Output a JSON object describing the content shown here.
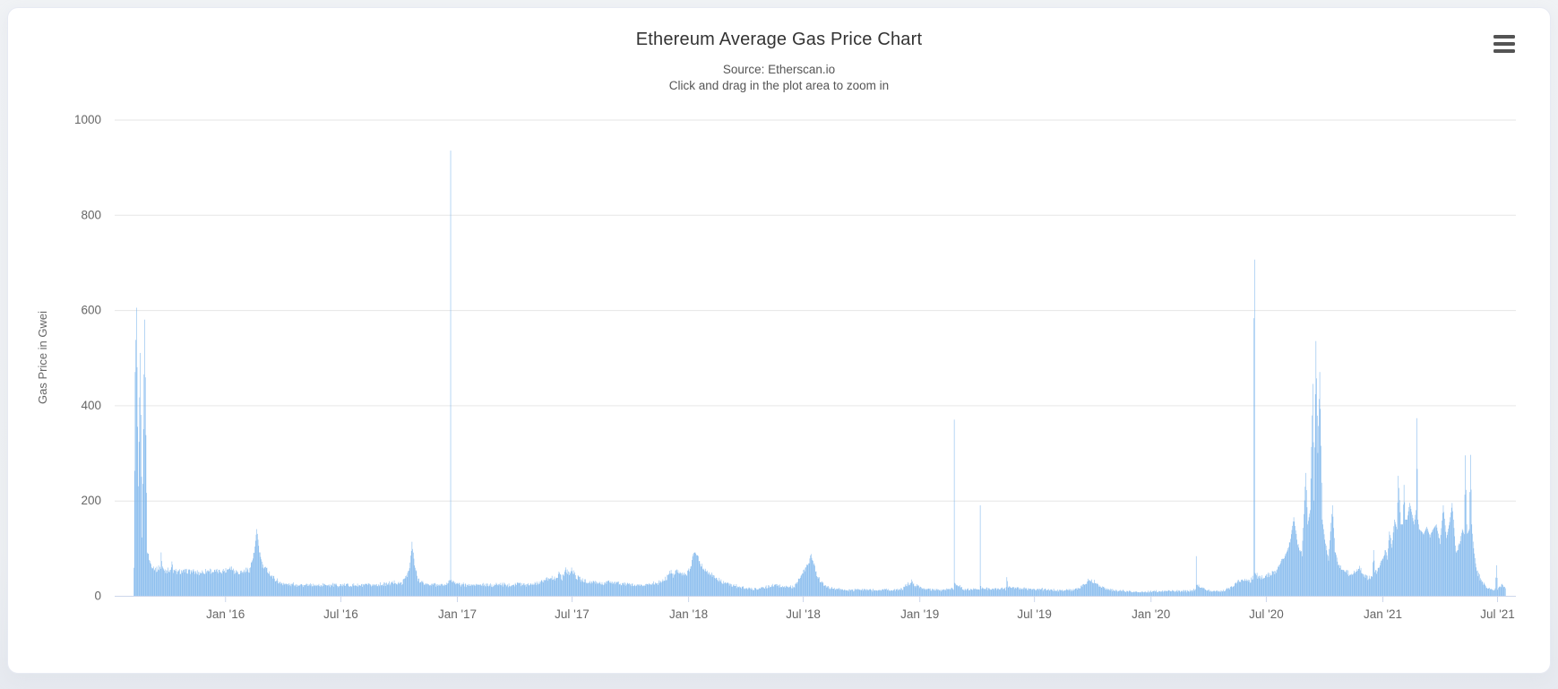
{
  "colors": {
    "series": "#7cb5ec",
    "grid_line": "#e6e6e6",
    "axis_line": "#ccd6eb",
    "title_text": "#333333",
    "muted_text": "#666666",
    "page_background": "#eef0f3",
    "card_background": "#ffffff",
    "menu_icon": "#545454"
  },
  "icons": {
    "context_menu": "hamburger"
  },
  "chart_data": {
    "type": "area",
    "title": "Ethereum Average Gas Price Chart",
    "subtitle_line1": "Source: Etherscan.io",
    "subtitle_line2": "Click and drag in the plot area to zoom in",
    "xlabel": "",
    "ylabel": "Gas Price in Gwei",
    "ylim": [
      0,
      1000
    ],
    "yticks": [
      0,
      200,
      400,
      600,
      800,
      1000
    ],
    "grid": true,
    "legend": "none",
    "x_range": [
      "2015-07-10",
      "2021-07-30"
    ],
    "x_ticks": [
      {
        "label": "Jan '16",
        "date": "2016-01-01"
      },
      {
        "label": "Jul '16",
        "date": "2016-07-01"
      },
      {
        "label": "Jan '17",
        "date": "2017-01-01"
      },
      {
        "label": "Jul '17",
        "date": "2017-07-01"
      },
      {
        "label": "Jan '18",
        "date": "2018-01-01"
      },
      {
        "label": "Jul '18",
        "date": "2018-07-01"
      },
      {
        "label": "Jan '19",
        "date": "2019-01-01"
      },
      {
        "label": "Jul '19",
        "date": "2019-07-01"
      },
      {
        "label": "Jan '20",
        "date": "2020-01-01"
      },
      {
        "label": "Jul '20",
        "date": "2020-07-01"
      },
      {
        "label": "Jan '21",
        "date": "2021-01-01"
      },
      {
        "label": "Jul '21",
        "date": "2021-07-01"
      }
    ],
    "series": [
      {
        "name": "Gas Price in Gwei",
        "color": "#7cb5ec",
        "points": [
          [
            "2015-08-09",
            55
          ],
          [
            "2015-08-11",
            470
          ],
          [
            "2015-08-13",
            605
          ],
          [
            "2015-08-16",
            230
          ],
          [
            "2015-08-19",
            510
          ],
          [
            "2015-08-22",
            120
          ],
          [
            "2015-08-26",
            580
          ],
          [
            "2015-08-30",
            95
          ],
          [
            "2015-09-04",
            68
          ],
          [
            "2015-09-12",
            55
          ],
          [
            "2015-09-20",
            60
          ],
          [
            "2015-09-21",
            90
          ],
          [
            "2015-09-23",
            58
          ],
          [
            "2015-09-28",
            54
          ],
          [
            "2015-10-07",
            55
          ],
          [
            "2015-10-08",
            72
          ],
          [
            "2015-10-10",
            52
          ],
          [
            "2015-10-18",
            50
          ],
          [
            "2015-11-05",
            52
          ],
          [
            "2015-11-20",
            48
          ],
          [
            "2015-12-05",
            53
          ],
          [
            "2015-12-20",
            50
          ],
          [
            "2016-01-03",
            55
          ],
          [
            "2016-01-08",
            62
          ],
          [
            "2016-01-15",
            52
          ],
          [
            "2016-01-26",
            50
          ],
          [
            "2016-02-08",
            56
          ],
          [
            "2016-02-15",
            90
          ],
          [
            "2016-02-19",
            140
          ],
          [
            "2016-02-23",
            95
          ],
          [
            "2016-02-28",
            62
          ],
          [
            "2016-03-08",
            52
          ],
          [
            "2016-03-16",
            38
          ],
          [
            "2016-03-26",
            28
          ],
          [
            "2016-04-08",
            24
          ],
          [
            "2016-04-25",
            23
          ],
          [
            "2016-05-15",
            22
          ],
          [
            "2016-06-05",
            23
          ],
          [
            "2016-06-25",
            22
          ],
          [
            "2016-07-15",
            23
          ],
          [
            "2016-08-05",
            22
          ],
          [
            "2016-08-25",
            23
          ],
          [
            "2016-09-12",
            25
          ],
          [
            "2016-09-24",
            28
          ],
          [
            "2016-10-05",
            26
          ],
          [
            "2016-10-17",
            55
          ],
          [
            "2016-10-21",
            110
          ],
          [
            "2016-10-25",
            65
          ],
          [
            "2016-10-30",
            36
          ],
          [
            "2016-11-08",
            26
          ],
          [
            "2016-11-20",
            24
          ],
          [
            "2016-12-02",
            23
          ],
          [
            "2016-12-12",
            22
          ],
          [
            "2016-12-20",
            30
          ],
          [
            "2016-12-21",
            935
          ],
          [
            "2016-12-22",
            32
          ],
          [
            "2017-01-05",
            24
          ],
          [
            "2017-01-20",
            22
          ],
          [
            "2017-02-05",
            23
          ],
          [
            "2017-02-20",
            22
          ],
          [
            "2017-03-08",
            24
          ],
          [
            "2017-03-22",
            23
          ],
          [
            "2017-04-05",
            25
          ],
          [
            "2017-04-20",
            24
          ],
          [
            "2017-05-03",
            26
          ],
          [
            "2017-05-16",
            30
          ],
          [
            "2017-05-26",
            40
          ],
          [
            "2017-06-02",
            34
          ],
          [
            "2017-06-10",
            46
          ],
          [
            "2017-06-15",
            38
          ],
          [
            "2017-06-21",
            56
          ],
          [
            "2017-06-26",
            46
          ],
          [
            "2017-06-30",
            55
          ],
          [
            "2017-07-06",
            42
          ],
          [
            "2017-07-14",
            35
          ],
          [
            "2017-07-24",
            30
          ],
          [
            "2017-08-05",
            28
          ],
          [
            "2017-08-18",
            26
          ],
          [
            "2017-09-02",
            29
          ],
          [
            "2017-09-16",
            25
          ],
          [
            "2017-10-02",
            24
          ],
          [
            "2017-10-16",
            22
          ],
          [
            "2017-11-02",
            25
          ],
          [
            "2017-11-16",
            28
          ],
          [
            "2017-11-26",
            36
          ],
          [
            "2017-12-02",
            52
          ],
          [
            "2017-12-07",
            44
          ],
          [
            "2017-12-12",
            55
          ],
          [
            "2017-12-20",
            47
          ],
          [
            "2017-12-28",
            42
          ],
          [
            "2018-01-04",
            62
          ],
          [
            "2018-01-08",
            85
          ],
          [
            "2018-01-11",
            96
          ],
          [
            "2018-01-16",
            78
          ],
          [
            "2018-01-21",
            64
          ],
          [
            "2018-01-27",
            55
          ],
          [
            "2018-02-03",
            48
          ],
          [
            "2018-02-12",
            38
          ],
          [
            "2018-02-22",
            30
          ],
          [
            "2018-03-04",
            25
          ],
          [
            "2018-03-18",
            20
          ],
          [
            "2018-04-02",
            16
          ],
          [
            "2018-04-16",
            14
          ],
          [
            "2018-05-02",
            18
          ],
          [
            "2018-05-16",
            22
          ],
          [
            "2018-06-02",
            20
          ],
          [
            "2018-06-16",
            18
          ],
          [
            "2018-07-02",
            52
          ],
          [
            "2018-07-06",
            62
          ],
          [
            "2018-07-13",
            83
          ],
          [
            "2018-07-17",
            70
          ],
          [
            "2018-07-22",
            46
          ],
          [
            "2018-07-28",
            30
          ],
          [
            "2018-08-06",
            20
          ],
          [
            "2018-08-18",
            15
          ],
          [
            "2018-09-03",
            13
          ],
          [
            "2018-09-18",
            12
          ],
          [
            "2018-10-04",
            13
          ],
          [
            "2018-10-18",
            12
          ],
          [
            "2018-11-03",
            13
          ],
          [
            "2018-11-18",
            12
          ],
          [
            "2018-12-03",
            14
          ],
          [
            "2018-12-19",
            30
          ],
          [
            "2018-12-24",
            22
          ],
          [
            "2019-01-06",
            15
          ],
          [
            "2019-01-18",
            13
          ],
          [
            "2019-02-02",
            12
          ],
          [
            "2019-02-16",
            14
          ],
          [
            "2019-02-23",
            14
          ],
          [
            "2019-02-24",
            370
          ],
          [
            "2019-02-25",
            25
          ],
          [
            "2019-03-12",
            13
          ],
          [
            "2019-03-24",
            14
          ],
          [
            "2019-04-05",
            14
          ],
          [
            "2019-04-06",
            190
          ],
          [
            "2019-04-07",
            18
          ],
          [
            "2019-04-22",
            14
          ],
          [
            "2019-05-06",
            15
          ],
          [
            "2019-05-17",
            15
          ],
          [
            "2019-05-18",
            42
          ],
          [
            "2019-05-20",
            18
          ],
          [
            "2019-06-04",
            16
          ],
          [
            "2019-06-18",
            15
          ],
          [
            "2019-07-03",
            14
          ],
          [
            "2019-07-18",
            13
          ],
          [
            "2019-08-03",
            12
          ],
          [
            "2019-08-18",
            11
          ],
          [
            "2019-09-03",
            14
          ],
          [
            "2019-09-16",
            22
          ],
          [
            "2019-09-25",
            34
          ],
          [
            "2019-10-05",
            28
          ],
          [
            "2019-10-16",
            18
          ],
          [
            "2019-11-02",
            11
          ],
          [
            "2019-11-18",
            10
          ],
          [
            "2019-12-04",
            9
          ],
          [
            "2019-12-19",
            8
          ],
          [
            "2020-01-04",
            9
          ],
          [
            "2020-01-19",
            10
          ],
          [
            "2020-02-04",
            11
          ],
          [
            "2020-02-19",
            10
          ],
          [
            "2020-03-03",
            11
          ],
          [
            "2020-03-11",
            12
          ],
          [
            "2020-03-12",
            80
          ],
          [
            "2020-03-13",
            25
          ],
          [
            "2020-03-26",
            12
          ],
          [
            "2020-04-10",
            10
          ],
          [
            "2020-04-26",
            11
          ],
          [
            "2020-05-06",
            18
          ],
          [
            "2020-05-16",
            28
          ],
          [
            "2020-05-26",
            35
          ],
          [
            "2020-06-05",
            32
          ],
          [
            "2020-06-10",
            40
          ],
          [
            "2020-06-11",
            583
          ],
          [
            "2020-06-12",
            706
          ],
          [
            "2020-06-13",
            45
          ],
          [
            "2020-06-21",
            38
          ],
          [
            "2020-06-29",
            42
          ],
          [
            "2020-07-06",
            45
          ],
          [
            "2020-07-16",
            52
          ],
          [
            "2020-07-26",
            75
          ],
          [
            "2020-08-03",
            95
          ],
          [
            "2020-08-08",
            120
          ],
          [
            "2020-08-13",
            165
          ],
          [
            "2020-08-19",
            110
          ],
          [
            "2020-08-26",
            85
          ],
          [
            "2020-09-01",
            258
          ],
          [
            "2020-09-04",
            150
          ],
          [
            "2020-09-08",
            180
          ],
          [
            "2020-09-12",
            445
          ],
          [
            "2020-09-14",
            200
          ],
          [
            "2020-09-17",
            535
          ],
          [
            "2020-09-20",
            300
          ],
          [
            "2020-09-23",
            470
          ],
          [
            "2020-09-27",
            160
          ],
          [
            "2020-10-02",
            110
          ],
          [
            "2020-10-07",
            80
          ],
          [
            "2020-10-13",
            190
          ],
          [
            "2020-10-17",
            95
          ],
          [
            "2020-10-23",
            65
          ],
          [
            "2020-11-02",
            55
          ],
          [
            "2020-11-09",
            45
          ],
          [
            "2020-11-18",
            50
          ],
          [
            "2020-11-24",
            62
          ],
          [
            "2020-12-02",
            42
          ],
          [
            "2020-12-09",
            38
          ],
          [
            "2020-12-15",
            40
          ],
          [
            "2020-12-17",
            95
          ],
          [
            "2020-12-19",
            48
          ],
          [
            "2020-12-24",
            55
          ],
          [
            "2020-12-31",
            75
          ],
          [
            "2021-01-04",
            95
          ],
          [
            "2021-01-08",
            80
          ],
          [
            "2021-01-11",
            135
          ],
          [
            "2021-01-15",
            105
          ],
          [
            "2021-01-19",
            160
          ],
          [
            "2021-01-23",
            140
          ],
          [
            "2021-01-25",
            252
          ],
          [
            "2021-01-29",
            150
          ],
          [
            "2021-02-01",
            150
          ],
          [
            "2021-02-03",
            233
          ],
          [
            "2021-02-05",
            160
          ],
          [
            "2021-02-08",
            160
          ],
          [
            "2021-02-12",
            195
          ],
          [
            "2021-02-16",
            170
          ],
          [
            "2021-02-19",
            150
          ],
          [
            "2021-02-22",
            180
          ],
          [
            "2021-02-23",
            373
          ],
          [
            "2021-02-25",
            160
          ],
          [
            "2021-02-27",
            140
          ],
          [
            "2021-03-06",
            130
          ],
          [
            "2021-03-11",
            145
          ],
          [
            "2021-03-16",
            125
          ],
          [
            "2021-03-21",
            140
          ],
          [
            "2021-03-26",
            150
          ],
          [
            "2021-04-01",
            110
          ],
          [
            "2021-04-06",
            190
          ],
          [
            "2021-04-11",
            120
          ],
          [
            "2021-04-16",
            155
          ],
          [
            "2021-04-20",
            195
          ],
          [
            "2021-04-26",
            90
          ],
          [
            "2021-05-02",
            110
          ],
          [
            "2021-05-06",
            140
          ],
          [
            "2021-05-09",
            130
          ],
          [
            "2021-05-11",
            295
          ],
          [
            "2021-05-13",
            150
          ],
          [
            "2021-05-14",
            130
          ],
          [
            "2021-05-17",
            140
          ],
          [
            "2021-05-19",
            296
          ],
          [
            "2021-05-21",
            150
          ],
          [
            "2021-05-23",
            110
          ],
          [
            "2021-05-28",
            60
          ],
          [
            "2021-06-03",
            35
          ],
          [
            "2021-06-08",
            28
          ],
          [
            "2021-06-15",
            16
          ],
          [
            "2021-06-22",
            13
          ],
          [
            "2021-06-27",
            13
          ],
          [
            "2021-06-29",
            68
          ],
          [
            "2021-07-01",
            16
          ],
          [
            "2021-07-04",
            18
          ],
          [
            "2021-07-08",
            24
          ],
          [
            "2021-07-13",
            15
          ]
        ]
      }
    ]
  }
}
